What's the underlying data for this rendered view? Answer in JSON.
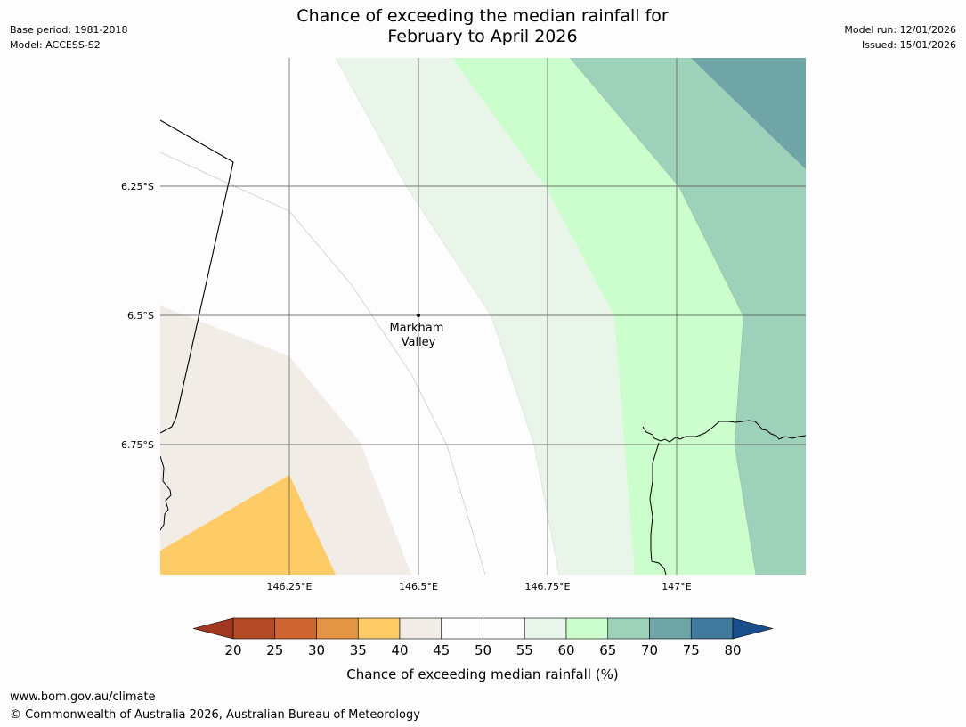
{
  "header": {
    "title_line1": "Chance of exceeding the median rainfall for",
    "title_line2": "February to April 2026",
    "base_period": "Base period: 1981-2018",
    "model": "Model: ACCESS-S2",
    "model_run": "Model run: 12/01/2026",
    "issued": "Issued: 15/01/2026"
  },
  "map": {
    "place_label_line1": "Markham",
    "place_label_line2": "Valley",
    "lat_labels": [
      "6.25°S",
      "6.5°S",
      "6.75°S"
    ],
    "lon_labels": [
      "146.25°E",
      "146.5°E",
      "146.75°E",
      "147°E"
    ]
  },
  "colorbar": {
    "title": "Chance of exceeding median rainfall (%)",
    "ticks": [
      "20",
      "25",
      "30",
      "35",
      "40",
      "45",
      "50",
      "55",
      "60",
      "65",
      "70",
      "75",
      "80"
    ],
    "colors": {
      "under": "#a0391f",
      "c20_25": "#b34b26",
      "c25_30": "#cf6631",
      "c30_35": "#e39444",
      "c35_40": "#fecc66",
      "c40_45": "#f1ece6",
      "c45_50": "#fdfdfd",
      "c50_55": "#fdfdfd",
      "c55_60": "#e9f5e9",
      "c60_65": "#ccfdcc",
      "c65_70": "#9ed1b9",
      "c70_75": "#70a5a7",
      "c75_80": "#417a9c",
      "over": "#184e8b"
    }
  },
  "footer": {
    "url": "www.bom.gov.au/climate",
    "copyright": "© Commonwealth of Australia 2026, Australian Bureau of Meteorology"
  }
}
